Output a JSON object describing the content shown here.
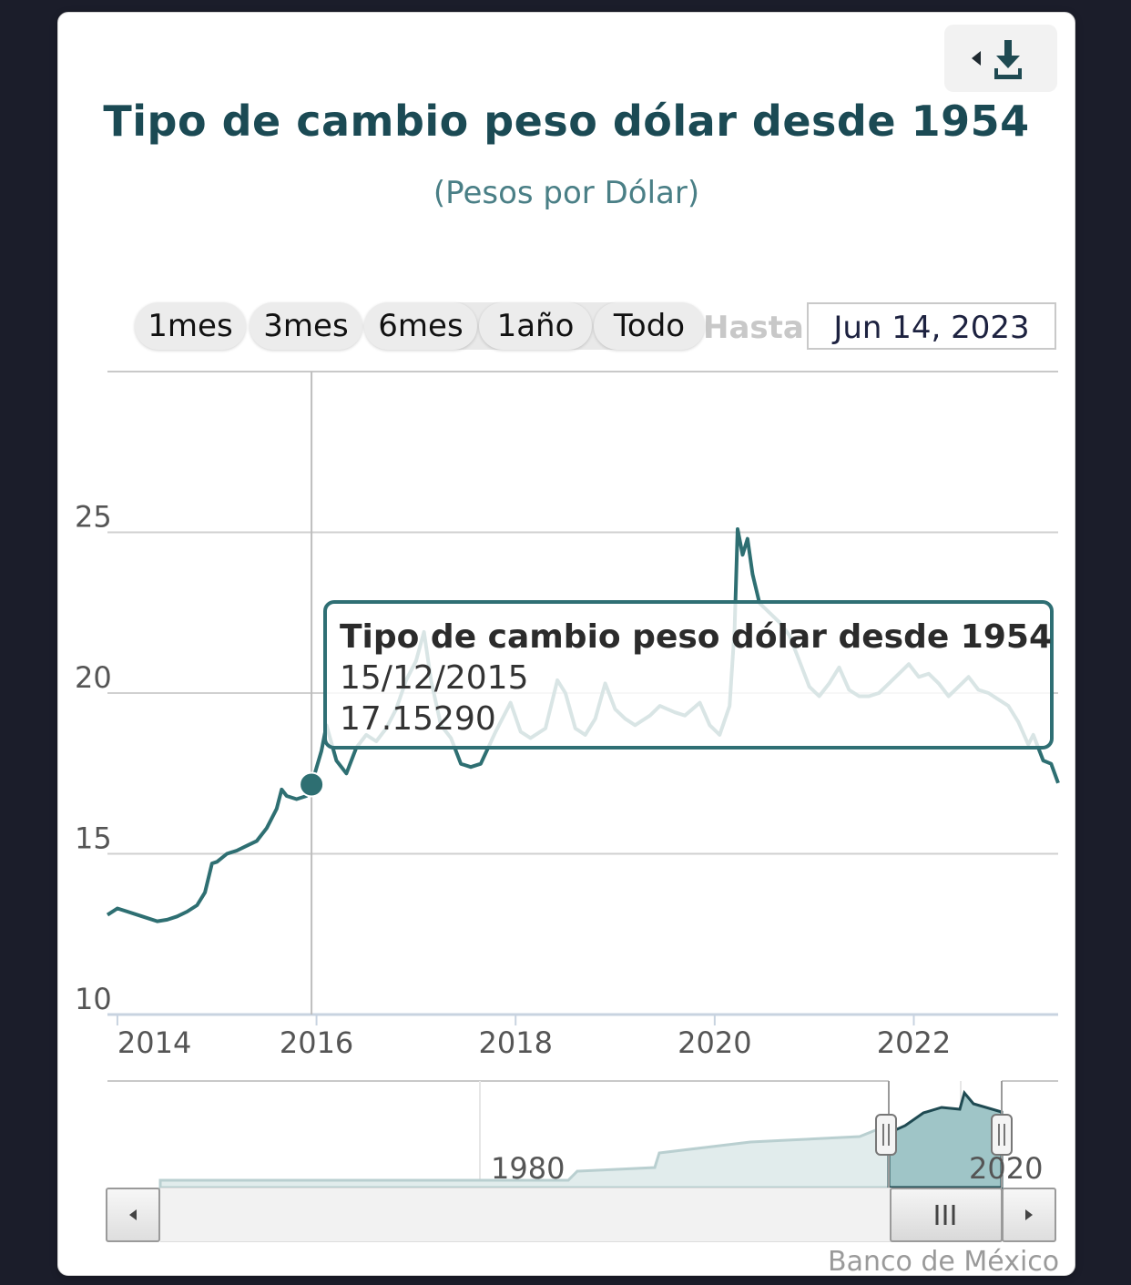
{
  "header": {
    "title": "Tipo de cambio peso dólar desde 1954",
    "subtitle": "(Pesos por Dólar)"
  },
  "range_selector": {
    "buttons": [
      "1mes",
      "3mes",
      "6mes",
      "1año",
      "Todo"
    ],
    "hasta_label": "Hasta",
    "date_value": "Jun 14, 2023"
  },
  "tooltip": {
    "series": "Tipo de cambio peso dólar desde 1954",
    "date": "15/12/2015",
    "value": "17.15290"
  },
  "navigator": {
    "labels": [
      "1980",
      "2020"
    ]
  },
  "credits": "Banco de México",
  "icons": {
    "export": "download-icon",
    "export_arrow": "caret-left-icon",
    "scroll_left": "chevron-left-icon",
    "scroll_right": "chevron-right-icon",
    "scroll_grip": "grip-icon"
  },
  "colors": {
    "series": "#2e6f72",
    "title": "#1b4a54",
    "subtitle": "#4a7f86",
    "navigator_fill": "#9fc5c7"
  },
  "chart_data": {
    "type": "line",
    "title": "Tipo de cambio peso dólar desde 1954",
    "subtitle": "(Pesos por Dólar)",
    "xlabel": "",
    "ylabel": "",
    "x_range": [
      2013.9,
      2023.45
    ],
    "ylim": [
      10,
      30
    ],
    "yticks": [
      10,
      15,
      20,
      25
    ],
    "xticks": [
      2014,
      2016,
      2018,
      2020,
      2022
    ],
    "grid": true,
    "legend": "none",
    "highlighted_point": {
      "x": 2015.95,
      "y": 17.1529
    },
    "series": [
      {
        "values": [
          [
            2013.9,
            13.1
          ],
          [
            2014.0,
            13.3
          ],
          [
            2014.1,
            13.2
          ],
          [
            2014.25,
            13.05
          ],
          [
            2014.4,
            12.9
          ],
          [
            2014.5,
            12.95
          ],
          [
            2014.6,
            13.05
          ],
          [
            2014.7,
            13.2
          ],
          [
            2014.8,
            13.4
          ],
          [
            2014.88,
            13.8
          ],
          [
            2014.95,
            14.7
          ],
          [
            2015.0,
            14.75
          ],
          [
            2015.1,
            15.0
          ],
          [
            2015.2,
            15.1
          ],
          [
            2015.3,
            15.25
          ],
          [
            2015.4,
            15.4
          ],
          [
            2015.5,
            15.8
          ],
          [
            2015.6,
            16.4
          ],
          [
            2015.65,
            17.0
          ],
          [
            2015.7,
            16.8
          ],
          [
            2015.8,
            16.7
          ],
          [
            2015.9,
            16.8
          ],
          [
            2015.95,
            17.15
          ],
          [
            2016.05,
            18.2
          ],
          [
            2016.1,
            19.0
          ],
          [
            2016.2,
            17.9
          ],
          [
            2016.3,
            17.5
          ],
          [
            2016.4,
            18.3
          ],
          [
            2016.5,
            18.7
          ],
          [
            2016.6,
            18.5
          ],
          [
            2016.7,
            18.9
          ],
          [
            2016.8,
            19.5
          ],
          [
            2016.9,
            20.4
          ],
          [
            2017.0,
            21.0
          ],
          [
            2017.08,
            21.9
          ],
          [
            2017.15,
            20.4
          ],
          [
            2017.25,
            19.0
          ],
          [
            2017.35,
            18.6
          ],
          [
            2017.45,
            17.8
          ],
          [
            2017.55,
            17.7
          ],
          [
            2017.65,
            17.8
          ],
          [
            2017.8,
            18.8
          ],
          [
            2017.95,
            19.7
          ],
          [
            2018.05,
            18.8
          ],
          [
            2018.15,
            18.6
          ],
          [
            2018.3,
            18.9
          ],
          [
            2018.42,
            20.4
          ],
          [
            2018.5,
            20.0
          ],
          [
            2018.6,
            18.9
          ],
          [
            2018.7,
            18.7
          ],
          [
            2018.8,
            19.2
          ],
          [
            2018.9,
            20.3
          ],
          [
            2019.0,
            19.5
          ],
          [
            2019.1,
            19.2
          ],
          [
            2019.2,
            19.0
          ],
          [
            2019.35,
            19.3
          ],
          [
            2019.45,
            19.6
          ],
          [
            2019.6,
            19.4
          ],
          [
            2019.7,
            19.3
          ],
          [
            2019.85,
            19.7
          ],
          [
            2019.95,
            19.0
          ],
          [
            2020.05,
            18.7
          ],
          [
            2020.15,
            19.6
          ],
          [
            2020.2,
            22.0
          ],
          [
            2020.23,
            25.1
          ],
          [
            2020.28,
            24.3
          ],
          [
            2020.33,
            24.8
          ],
          [
            2020.38,
            23.7
          ],
          [
            2020.45,
            22.8
          ],
          [
            2020.55,
            22.5
          ],
          [
            2020.65,
            22.2
          ],
          [
            2020.75,
            21.8
          ],
          [
            2020.85,
            21.0
          ],
          [
            2020.95,
            20.2
          ],
          [
            2021.05,
            19.9
          ],
          [
            2021.15,
            20.3
          ],
          [
            2021.25,
            20.8
          ],
          [
            2021.35,
            20.1
          ],
          [
            2021.45,
            19.9
          ],
          [
            2021.55,
            19.9
          ],
          [
            2021.65,
            20.0
          ],
          [
            2021.75,
            20.3
          ],
          [
            2021.85,
            20.6
          ],
          [
            2021.95,
            20.9
          ],
          [
            2022.05,
            20.5
          ],
          [
            2022.15,
            20.6
          ],
          [
            2022.25,
            20.3
          ],
          [
            2022.35,
            19.9
          ],
          [
            2022.45,
            20.2
          ],
          [
            2022.55,
            20.5
          ],
          [
            2022.65,
            20.1
          ],
          [
            2022.75,
            20.0
          ],
          [
            2022.85,
            19.8
          ],
          [
            2022.95,
            19.6
          ],
          [
            2023.05,
            19.1
          ],
          [
            2023.15,
            18.4
          ],
          [
            2023.2,
            18.7
          ],
          [
            2023.3,
            17.9
          ],
          [
            2023.38,
            17.8
          ],
          [
            2023.45,
            17.2
          ]
        ]
      }
    ]
  }
}
